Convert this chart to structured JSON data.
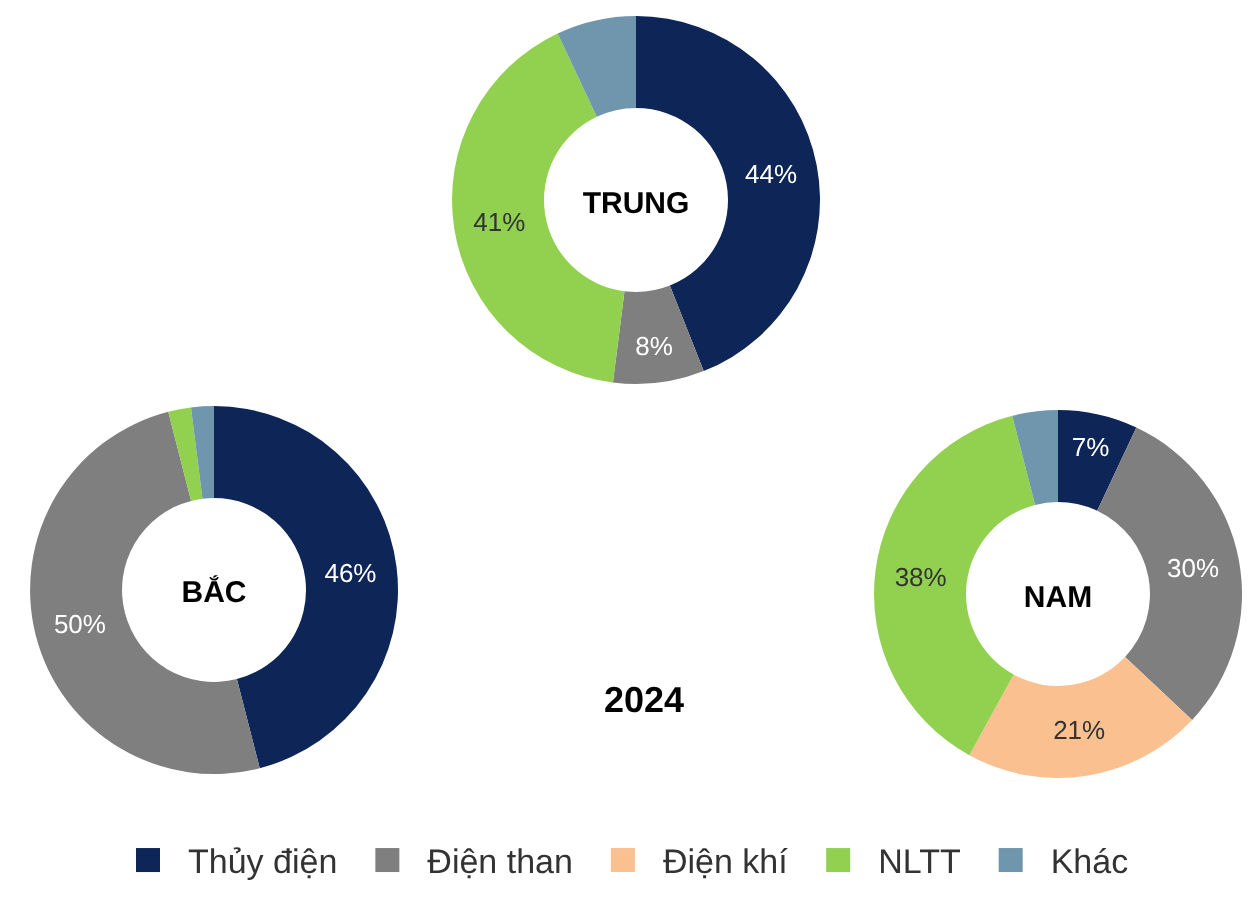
{
  "chart_data": [
    {
      "type": "donut",
      "title": "TRUNG",
      "categories": [
        null,
        null,
        null,
        null
      ],
      "values": [
        44,
        8,
        41,
        7
      ],
      "colors": [
        "#0d2557",
        "#7f7f7f",
        "#92d050",
        "#6f96ad"
      ],
      "value_labels": [
        "44%",
        "8%",
        "41%",
        null
      ],
      "legend": false
    },
    {
      "type": "donut",
      "title": "BẮC",
      "categories": [
        null,
        null,
        null,
        null
      ],
      "values": [
        46,
        50,
        2,
        2
      ],
      "colors": [
        "#0d2557",
        "#7f7f7f",
        "#92d050",
        "#6f96ad"
      ],
      "value_labels": [
        "46%",
        "50%",
        null,
        null
      ],
      "legend": false
    },
    {
      "type": "donut",
      "title": "NAM",
      "categories": [
        "Thủy điện",
        "Điện than",
        "Điện khí",
        "NLTT",
        "Khác"
      ],
      "values": [
        7,
        30,
        21,
        38,
        4
      ],
      "colors": [
        "#0d2557",
        "#7f7f7f",
        "#fac090",
        "#92d050",
        "#6f96ad"
      ],
      "value_labels": [
        "7%",
        "30%",
        "21%",
        "38%",
        null
      ],
      "legend": "bottom",
      "annotations": [
        "2024"
      ]
    }
  ]
}
